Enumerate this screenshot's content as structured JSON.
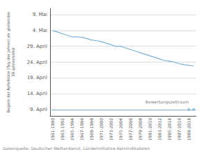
{
  "chart_data": {
    "type": "line",
    "ylabel": "Beginn der Apfelblüte (Tag des Jahres) als gleitendes\n30-Jahresmittel",
    "source": "Datenquelle: Deutscher Wetterdienst, Länderinitiative Kernindikatoren",
    "categories": [
      "1961-1990",
      null,
      "1963-1992",
      null,
      "1965-1994",
      null,
      "1967-1996",
      null,
      "1969-1998",
      null,
      "1971-2000",
      null,
      "1973-2002",
      null,
      "1975-2004",
      null,
      "1977-2006",
      null,
      "1979-2008",
      null,
      "1981-2010",
      null,
      "1983-2012",
      null,
      "1985-2014",
      null,
      "1987-2016",
      null,
      "1989-2018",
      null
    ],
    "values": [
      125,
      124.5,
      124,
      123.5,
      123,
      123,
      122.8,
      122.5,
      122,
      121.8,
      121.5,
      121,
      120.5,
      120,
      120,
      119.5,
      119,
      118.5,
      118,
      117.5,
      117,
      116.5,
      116,
      115.5,
      115.3,
      115,
      114.5,
      114.2,
      114,
      113.8
    ],
    "color": "#7BAFD4",
    "reference_line": {
      "y": 100,
      "color": "#7BAFD4"
    },
    "points": {
      "values": [
        null,
        null,
        null,
        null,
        null,
        null,
        null,
        null,
        null,
        null,
        null,
        null,
        null,
        null,
        null,
        null,
        null,
        null,
        null,
        null,
        null,
        null,
        null,
        null,
        null,
        null,
        null,
        null,
        100,
        100
      ],
      "color": "#7BAFD4",
      "marker": "circle"
    },
    "annotations": [
      {
        "text": "Bewertungszeitraum",
        "x": "1989-2018",
        "y": 100
      }
    ],
    "ylim": [
      98,
      132
    ],
    "yticks": [
      {
        "value": 100,
        "label": "9. April"
      },
      {
        "value": 105,
        "label": "14. April"
      },
      {
        "value": 110,
        "label": "19. April"
      },
      {
        "value": 115,
        "label": "24. April"
      },
      {
        "value": 120,
        "label": "29. April"
      },
      {
        "value": 125,
        "label": "4. Mai"
      },
      {
        "value": 130,
        "label": "9. Mai"
      }
    ],
    "grid": true
  }
}
